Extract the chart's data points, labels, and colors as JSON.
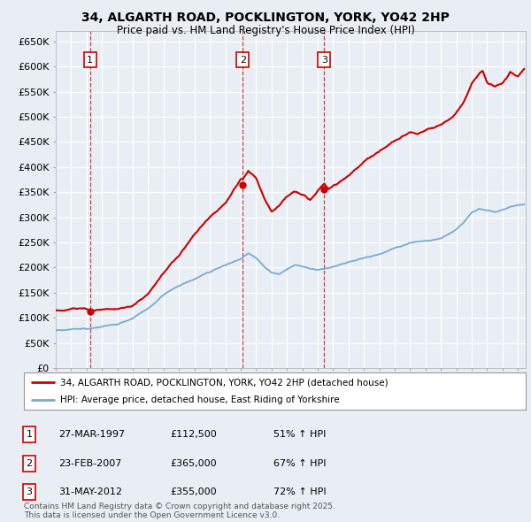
{
  "title_line1": "34, ALGARTH ROAD, POCKLINGTON, YORK, YO42 2HP",
  "title_line2": "Price paid vs. HM Land Registry's House Price Index (HPI)",
  "ylim": [
    0,
    670000
  ],
  "yticks": [
    0,
    50000,
    100000,
    150000,
    200000,
    250000,
    300000,
    350000,
    400000,
    450000,
    500000,
    550000,
    600000,
    650000
  ],
  "ytick_labels": [
    "£0",
    "£50K",
    "£100K",
    "£150K",
    "£200K",
    "£250K",
    "£300K",
    "£350K",
    "£400K",
    "£450K",
    "£500K",
    "£550K",
    "£600K",
    "£650K"
  ],
  "background_color": "#e8eef4",
  "grid_color": "#ffffff",
  "red_line_color": "#cc0000",
  "blue_line_color": "#7aaacf",
  "sale_dates": [
    1997.23,
    2007.14,
    2012.42
  ],
  "sale_prices": [
    112500,
    365000,
    355000
  ],
  "sale_labels": [
    "1",
    "2",
    "3"
  ],
  "legend_line1": "34, ALGARTH ROAD, POCKLINGTON, YORK, YO42 2HP (detached house)",
  "legend_line2": "HPI: Average price, detached house, East Riding of Yorkshire",
  "table_entries": [
    {
      "num": "1",
      "date": "27-MAR-1997",
      "price": "£112,500",
      "hpi": "51% ↑ HPI"
    },
    {
      "num": "2",
      "date": "23-FEB-2007",
      "price": "£365,000",
      "hpi": "67% ↑ HPI"
    },
    {
      "num": "3",
      "date": "31-MAY-2012",
      "price": "£355,000",
      "hpi": "72% ↑ HPI"
    }
  ],
  "footnote": "Contains HM Land Registry data © Crown copyright and database right 2025.\nThis data is licensed under the Open Government Licence v3.0.",
  "xmin": 1995.0,
  "xmax": 2025.5
}
